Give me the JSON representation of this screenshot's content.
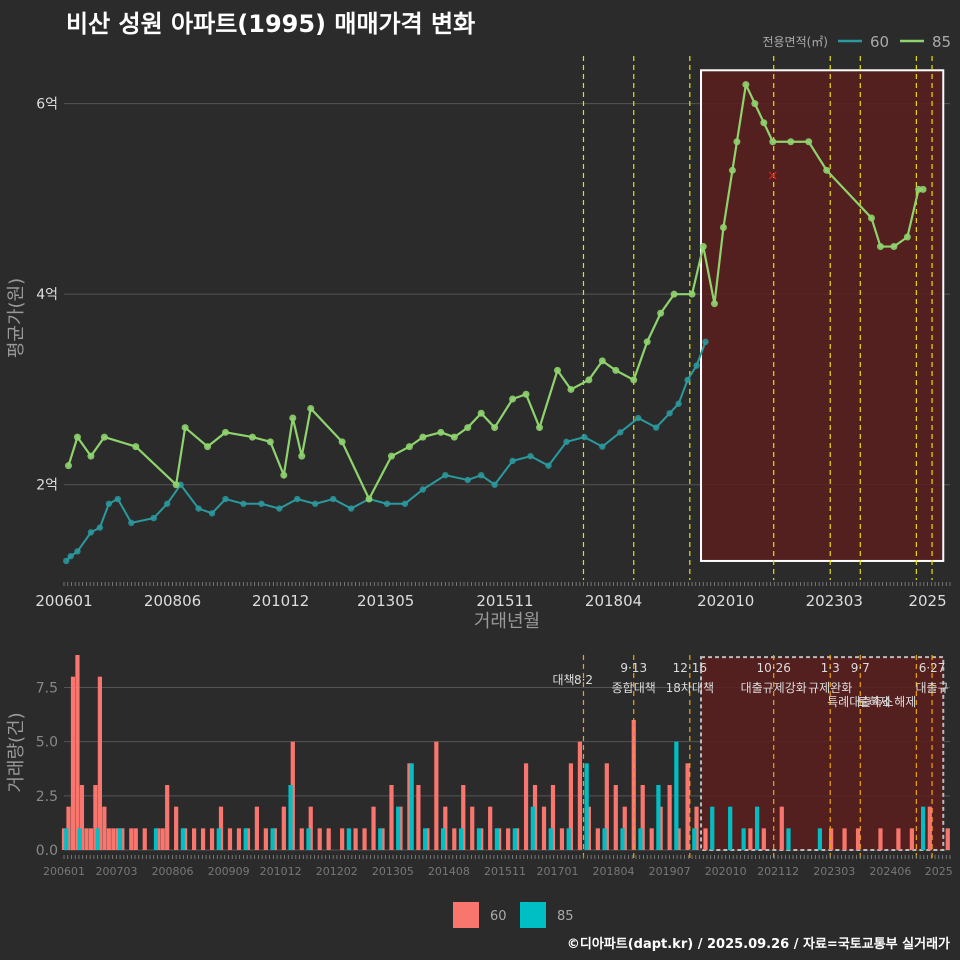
{
  "title": "비산 성원 아파트(1995) 매매가격 변화",
  "credit": "©디아파트(dapt.kr) / 2025.09.26 / 자료=국토교통부 실거래가",
  "colors": {
    "bg": "#2b2b2b",
    "s60": "#2a9a9e",
    "s85": "#8fd36e",
    "bar60": "#f8766d",
    "bar85": "#00bfc4",
    "policy_orange": "#f0a500",
    "policy_yellow": "#e8e000",
    "highlight": "#5a1d1d"
  },
  "chart_data": [
    {
      "type": "line",
      "title": "비산 성원 아파트(1995) 매매가격 변화",
      "xlabel": "거래년월",
      "ylabel": "평균가(원)",
      "ylim": [
        1.0,
        6.5
      ],
      "yticks": [
        {
          "v": 2,
          "label": "2억"
        },
        {
          "v": 4,
          "label": "4억"
        },
        {
          "v": 6,
          "label": "6억"
        }
      ],
      "xlim": [
        2006.0,
        2025.75
      ],
      "xticks": [
        {
          "v": 2006.0,
          "label": "200601"
        },
        {
          "v": 2008.42,
          "label": "200806"
        },
        {
          "v": 2010.83,
          "label": "201012"
        },
        {
          "v": 2013.17,
          "label": "201305"
        },
        {
          "v": 2015.83,
          "label": "201511"
        },
        {
          "v": 2018.25,
          "label": "201804"
        },
        {
          "v": 2020.75,
          "label": "202010"
        },
        {
          "v": 2023.17,
          "label": "202303"
        },
        {
          "v": 2025.25,
          "label": "2025"
        }
      ],
      "legend": {
        "title": "전용면적(㎡)",
        "items": [
          "60",
          "85"
        ]
      },
      "series": [
        {
          "name": "60",
          "x": [
            2006.05,
            2006.15,
            2006.3,
            2006.6,
            2006.8,
            2007.0,
            2007.2,
            2007.5,
            2008.0,
            2008.3,
            2008.6,
            2009.0,
            2009.3,
            2009.6,
            2010.0,
            2010.4,
            2010.8,
            2011.2,
            2011.6,
            2012.0,
            2012.4,
            2012.8,
            2013.2,
            2013.6,
            2014.0,
            2014.5,
            2015.0,
            2015.3,
            2015.6,
            2016.0,
            2016.4,
            2016.8,
            2017.2,
            2017.6,
            2018.0,
            2018.4,
            2018.8,
            2019.2,
            2019.5,
            2019.7,
            2019.9,
            2020.1,
            2020.3
          ],
          "values": [
            1.2,
            1.25,
            1.3,
            1.5,
            1.55,
            1.8,
            1.85,
            1.6,
            1.65,
            1.8,
            2.0,
            1.75,
            1.7,
            1.85,
            1.8,
            1.8,
            1.75,
            1.85,
            1.8,
            1.85,
            1.75,
            1.85,
            1.8,
            1.8,
            1.95,
            2.1,
            2.05,
            2.1,
            2.0,
            2.25,
            2.3,
            2.2,
            2.45,
            2.5,
            2.4,
            2.55,
            2.7,
            2.6,
            2.75,
            2.85,
            3.1,
            3.25,
            3.5
          ]
        },
        {
          "name": "85",
          "x": [
            2006.1,
            2006.3,
            2006.6,
            2006.9,
            2007.6,
            2008.5,
            2008.7,
            2009.2,
            2009.6,
            2010.2,
            2010.6,
            2010.9,
            2011.1,
            2011.3,
            2011.5,
            2012.2,
            2012.8,
            2013.3,
            2013.7,
            2014.0,
            2014.4,
            2014.7,
            2015.0,
            2015.3,
            2015.6,
            2016.0,
            2016.3,
            2016.6,
            2017.0,
            2017.3,
            2017.7,
            2018.0,
            2018.3,
            2018.7,
            2019.0,
            2019.3,
            2019.6,
            2020.0,
            2020.25,
            2020.5,
            2020.7,
            2020.9,
            2021.0,
            2021.2,
            2021.4,
            2021.6,
            2021.8,
            2022.2,
            2022.6,
            2023.0,
            2024.0,
            2024.2,
            2024.5,
            2024.8,
            2025.05,
            2025.15
          ],
          "values": [
            2.2,
            2.5,
            2.3,
            2.5,
            2.4,
            2.0,
            2.6,
            2.4,
            2.55,
            2.5,
            2.45,
            2.1,
            2.7,
            2.3,
            2.8,
            2.45,
            1.85,
            2.3,
            2.4,
            2.5,
            2.55,
            2.5,
            2.6,
            2.75,
            2.6,
            2.9,
            2.95,
            2.6,
            3.2,
            3.0,
            3.1,
            3.3,
            3.2,
            3.1,
            3.5,
            3.8,
            4.0,
            4.0,
            4.5,
            3.9,
            4.7,
            5.3,
            5.6,
            6.2,
            6.0,
            5.8,
            5.6,
            5.6,
            5.6,
            5.3,
            4.8,
            4.5,
            4.5,
            4.6,
            5.1,
            5.1
          ]
        }
      ],
      "highlight_region": {
        "x": [
          2020.2,
          2025.6
        ],
        "y": [
          1.2,
          6.35
        ]
      },
      "outlier_marker": {
        "x": 2021.8,
        "y": 5.25,
        "symbol": "×"
      },
      "policy_lines": [
        2017.58,
        2018.7,
        2019.95,
        2021.82,
        2023.08,
        2023.75,
        2025.0,
        2025.35
      ]
    },
    {
      "type": "bar",
      "xlabel": "",
      "ylabel": "거래량(건)",
      "ylim": [
        0,
        9
      ],
      "yticks": [
        {
          "v": 0,
          "label": "0.0"
        },
        {
          "v": 2.5,
          "label": "2.5"
        },
        {
          "v": 5,
          "label": "5.0"
        },
        {
          "v": 7.5,
          "label": "7.5"
        }
      ],
      "xlim": [
        2006.0,
        2025.75
      ],
      "xticks": [
        {
          "v": 2006.0,
          "label": "200601"
        },
        {
          "v": 2007.17,
          "label": "200703"
        },
        {
          "v": 2008.42,
          "label": "200806"
        },
        {
          "v": 2009.67,
          "label": "200909"
        },
        {
          "v": 2010.83,
          "label": "201012"
        },
        {
          "v": 2012.08,
          "label": "201202"
        },
        {
          "v": 2013.33,
          "label": "201305"
        },
        {
          "v": 2014.58,
          "label": "201408"
        },
        {
          "v": 2015.83,
          "label": "201511"
        },
        {
          "v": 2017.0,
          "label": "201701"
        },
        {
          "v": 2018.25,
          "label": "201804"
        },
        {
          "v": 2019.5,
          "label": "201907"
        },
        {
          "v": 2020.75,
          "label": "202010"
        },
        {
          "v": 2021.92,
          "label": "202112"
        },
        {
          "v": 2023.17,
          "label": "202303"
        },
        {
          "v": 2024.42,
          "label": "202406"
        },
        {
          "v": 2025.5,
          "label": "2025"
        }
      ],
      "legend": {
        "items": [
          "60",
          "85"
        ]
      },
      "series": [
        {
          "name": "60",
          "x": [
            2006.0,
            2006.1,
            2006.2,
            2006.3,
            2006.4,
            2006.5,
            2006.6,
            2006.7,
            2006.8,
            2006.9,
            2007.0,
            2007.1,
            2007.2,
            2007.3,
            2007.5,
            2007.6,
            2007.8,
            2008.1,
            2008.2,
            2008.3,
            2008.5,
            2008.7,
            2008.9,
            2009.1,
            2009.3,
            2009.5,
            2009.7,
            2009.9,
            2010.1,
            2010.3,
            2010.5,
            2010.7,
            2010.9,
            2011.1,
            2011.3,
            2011.5,
            2011.7,
            2011.9,
            2012.2,
            2012.5,
            2012.7,
            2012.9,
            2013.1,
            2013.3,
            2013.5,
            2013.7,
            2013.9,
            2014.1,
            2014.3,
            2014.5,
            2014.7,
            2014.9,
            2015.1,
            2015.3,
            2015.5,
            2015.7,
            2015.9,
            2016.1,
            2016.3,
            2016.5,
            2016.7,
            2016.9,
            2017.1,
            2017.3,
            2017.5,
            2017.7,
            2017.9,
            2018.1,
            2018.3,
            2018.5,
            2018.7,
            2018.9,
            2019.1,
            2019.3,
            2019.5,
            2019.7,
            2019.9,
            2020.1,
            2020.3,
            2021.3,
            2021.6,
            2022.0,
            2023.1,
            2023.4,
            2023.7,
            2024.2,
            2024.6,
            2024.9,
            2025.3,
            2025.7
          ],
          "values": [
            1,
            2,
            8,
            9,
            3,
            1,
            1,
            3,
            8,
            2,
            1,
            1,
            1,
            1,
            1,
            1,
            1,
            1,
            1,
            3,
            2,
            1,
            1,
            1,
            1,
            2,
            1,
            1,
            1,
            2,
            1,
            1,
            2,
            5,
            1,
            2,
            1,
            1,
            1,
            1,
            1,
            2,
            1,
            3,
            2,
            4,
            3,
            1,
            5,
            2,
            1,
            3,
            2,
            1,
            2,
            1,
            1,
            1,
            4,
            3,
            2,
            3,
            1,
            4,
            5,
            2,
            1,
            4,
            3,
            2,
            6,
            3,
            1,
            2,
            3,
            1,
            4,
            2,
            1,
            1,
            1,
            2,
            1,
            1,
            1,
            1,
            1,
            1,
            2,
            1
          ]
        },
        {
          "name": "85",
          "x": [
            2006.05,
            2006.35,
            2006.75,
            2007.25,
            2008.05,
            2008.65,
            2009.45,
            2010.05,
            2010.65,
            2011.05,
            2011.45,
            2012.35,
            2013.05,
            2013.45,
            2013.75,
            2014.05,
            2014.45,
            2014.85,
            2015.25,
            2015.65,
            2016.05,
            2016.45,
            2016.85,
            2017.25,
            2017.65,
            2018.05,
            2018.45,
            2018.85,
            2019.25,
            2019.65,
            2020.05,
            2020.45,
            2020.85,
            2021.15,
            2021.45,
            2022.15,
            2022.85,
            2025.15
          ],
          "values": [
            1,
            1,
            1,
            1,
            1,
            1,
            1,
            1,
            1,
            3,
            1,
            1,
            1,
            2,
            4,
            1,
            1,
            1,
            1,
            1,
            1,
            2,
            1,
            1,
            4,
            1,
            1,
            1,
            3,
            5,
            1,
            2,
            2,
            1,
            2,
            1,
            1,
            2
          ]
        }
      ],
      "highlight_region": {
        "x": [
          2020.2,
          2025.6
        ],
        "y": [
          0,
          8.9
        ]
      },
      "policy_lines": [
        {
          "x": 2017.58,
          "date": "8·2",
          "label": "대책"
        },
        {
          "x": 2018.7,
          "date": "9·13",
          "label": "종합대책"
        },
        {
          "x": 2019.95,
          "date": "12·16",
          "label": "18차대책"
        },
        {
          "x": 2021.82,
          "date": "10·26",
          "label": "대출규제강화"
        },
        {
          "x": 2023.08,
          "date": "1·3",
          "label": "규제완화"
        },
        {
          "x": 2023.75,
          "date": "9·7",
          "label": "특례대출축소"
        },
        {
          "x": 2025.0,
          "date": "",
          "label": "토허제 해제"
        },
        {
          "x": 2025.35,
          "date": "6·27",
          "label": "대출규"
        }
      ]
    }
  ]
}
